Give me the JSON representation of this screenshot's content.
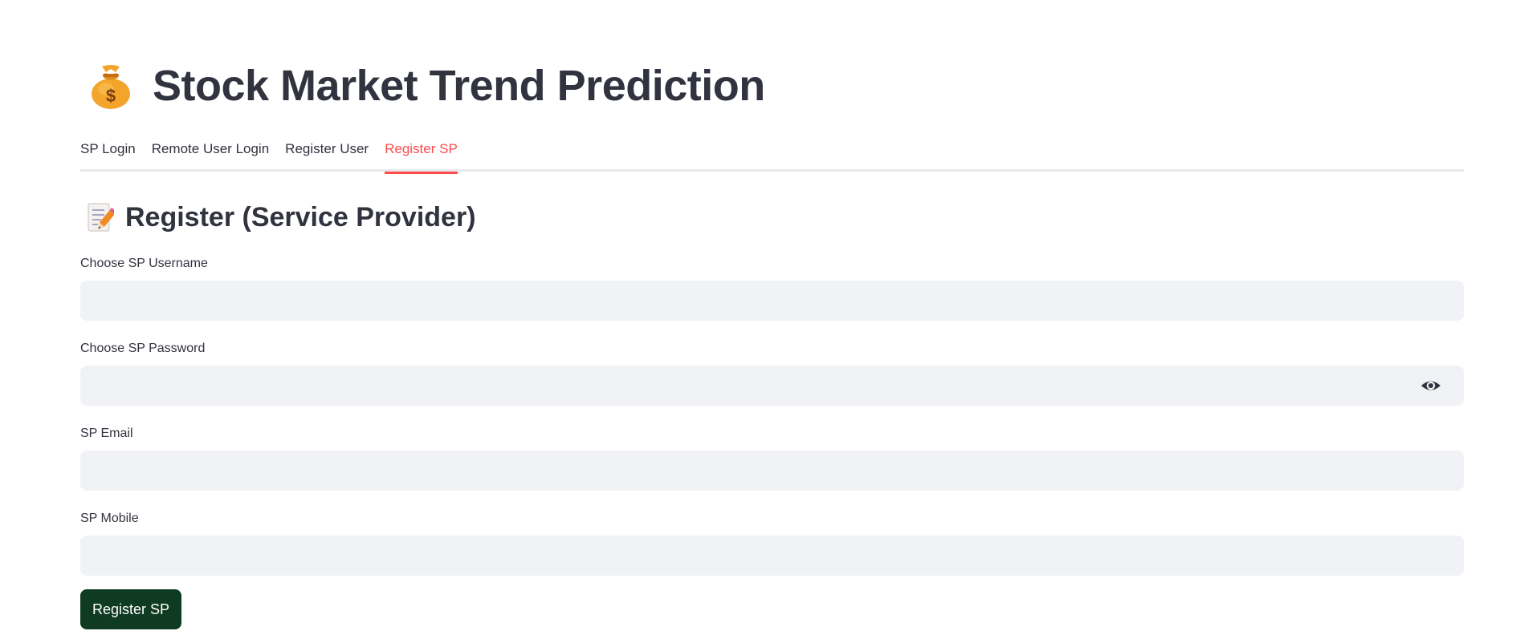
{
  "header": {
    "title_icon": "money-bag-icon",
    "title": "Stock Market Trend Prediction"
  },
  "tabs": [
    {
      "label": "SP Login",
      "active": false
    },
    {
      "label": "Remote User Login",
      "active": false
    },
    {
      "label": "Register User",
      "active": false
    },
    {
      "label": "Register SP",
      "active": true
    }
  ],
  "form": {
    "subheader_icon": "memo-icon",
    "subheader": "Register (Service Provider)",
    "username_label": "Choose SP Username",
    "username_value": "",
    "password_label": "Choose SP Password",
    "password_value": "",
    "password_toggle_icon": "eye-icon",
    "email_label": "SP Email",
    "email_value": "",
    "mobile_label": "SP Mobile",
    "mobile_value": "",
    "submit_label": "Register SP"
  },
  "colors": {
    "accent": "#ff4b4b",
    "text": "#31333f",
    "input_bg": "#f0f2f6",
    "button_bg": "#0e3b22",
    "tab_border": "#e8e9ed"
  }
}
